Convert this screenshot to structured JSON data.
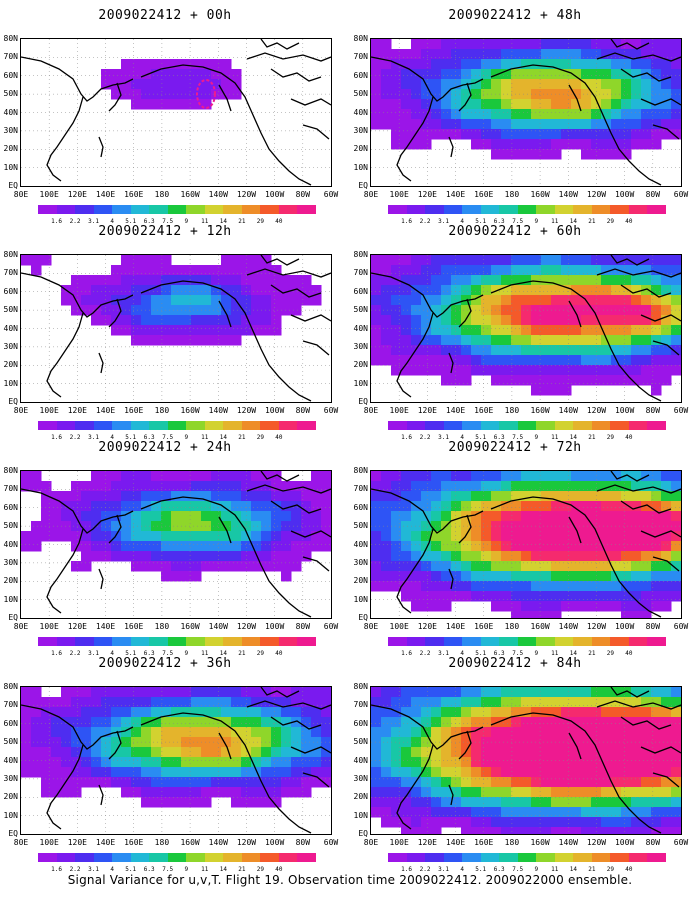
{
  "panels": [
    {
      "title": "2009022412 + 00h",
      "col": 0,
      "row": 0,
      "level": 0
    },
    {
      "title": "2009022412 + 48h",
      "col": 1,
      "row": 0,
      "level": 3
    },
    {
      "title": "2009022412 + 12h",
      "col": 0,
      "row": 1,
      "level": 1
    },
    {
      "title": "2009022412 + 60h",
      "col": 1,
      "row": 1,
      "level": 4
    },
    {
      "title": "2009022412 + 24h",
      "col": 0,
      "row": 2,
      "level": 2
    },
    {
      "title": "2009022412 + 72h",
      "col": 1,
      "row": 2,
      "level": 5
    },
    {
      "title": "2009022412 + 36h",
      "col": 0,
      "row": 3,
      "level": 3
    },
    {
      "title": "2009022412 + 84h",
      "col": 1,
      "row": 3,
      "level": 6
    }
  ],
  "lat_labels": [
    "80N",
    "70N",
    "60N",
    "50N",
    "40N",
    "30N",
    "20N",
    "10N",
    "EQ"
  ],
  "lon_labels": [
    "80E",
    "100E",
    "120E",
    "140E",
    "160E",
    "180",
    "160W",
    "140W",
    "120W",
    "100W",
    "80W",
    "60W"
  ],
  "colorbar": {
    "labels": [
      "1.6",
      "2.2",
      "3.1",
      "4",
      "5.1",
      "6.3",
      "7.5",
      "9",
      "11",
      "14",
      "21",
      "29",
      "40"
    ],
    "colors": [
      "#9b15e8",
      "#7a1aef",
      "#4e2df0",
      "#2e54f5",
      "#2a8cf2",
      "#21b8d6",
      "#18c7a6",
      "#1ac83c",
      "#8fd62a",
      "#d2d230",
      "#e4b42c",
      "#ee8d28",
      "#f45a2a",
      "#f52a6e",
      "#ee1a90"
    ]
  },
  "caption": "Signal Variance for u,v,T. Flight 19. Observation time 2009022412. 2009022000 ensemble."
}
